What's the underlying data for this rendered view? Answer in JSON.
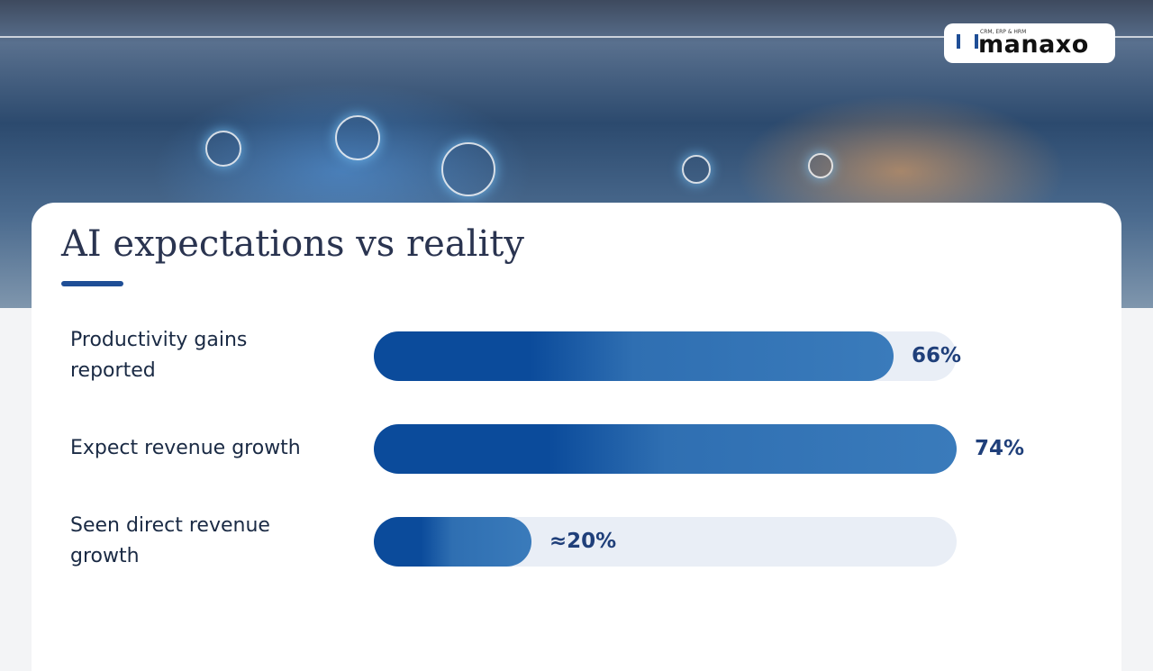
{
  "logo": {
    "name": "manaxo",
    "tagline": "CRM, ERP & HRM"
  },
  "chart_data": {
    "type": "bar",
    "orientation": "horizontal",
    "title": "AI expectations vs reality",
    "categories": [
      "Productivity gains reported",
      "Expect revenue growth",
      "Seen direct revenue growth"
    ],
    "values": [
      66,
      74,
      20
    ],
    "value_labels": [
      "66%",
      "74%",
      "≈20%"
    ],
    "xlim": [
      0,
      74
    ],
    "color": "#0b4b9b"
  }
}
